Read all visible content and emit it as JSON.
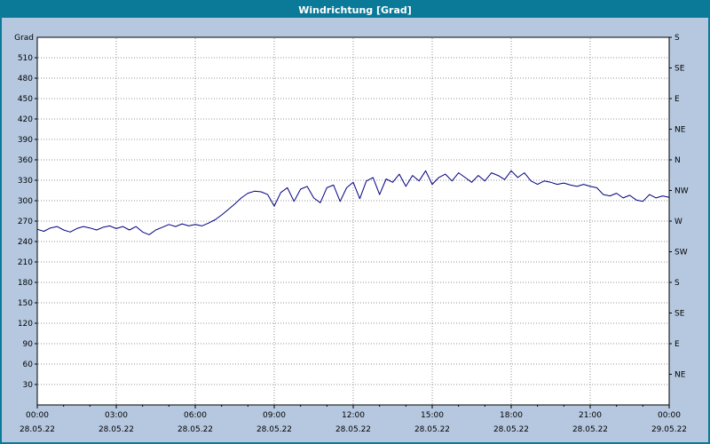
{
  "window": {
    "title": "Windrichtung [Grad]"
  },
  "colors": {
    "titlebar_bg": "#0b7a99",
    "titlebar_text": "#ffffff",
    "frame_bg": "#b6c8e0",
    "frame_border": "#0b7a99",
    "plot_bg": "#ffffff",
    "plot_border": "#000000",
    "grid": "#909090",
    "axis_text": "#000000",
    "line": "#000080"
  },
  "chart_data": {
    "type": "line",
    "title": "Windrichtung [Grad]",
    "y_left": {
      "label": "Grad",
      "min": 0,
      "max": 540,
      "tick_values": [
        510,
        480,
        450,
        420,
        390,
        360,
        330,
        300,
        270,
        240,
        210,
        180,
        150,
        120,
        90,
        60,
        30
      ]
    },
    "y_right": {
      "ticks": [
        {
          "value": 540,
          "label": "S"
        },
        {
          "value": 495,
          "label": "SE"
        },
        {
          "value": 450,
          "label": "E"
        },
        {
          "value": 405,
          "label": "NE"
        },
        {
          "value": 360,
          "label": "N"
        },
        {
          "value": 315,
          "label": "NW"
        },
        {
          "value": 270,
          "label": "W"
        },
        {
          "value": 225,
          "label": "SW"
        },
        {
          "value": 180,
          "label": "S"
        },
        {
          "value": 135,
          "label": "SE"
        },
        {
          "value": 90,
          "label": "E"
        },
        {
          "value": 45,
          "label": "NE"
        }
      ]
    },
    "x_axis": {
      "min_hours": 0,
      "max_hours": 24,
      "ticks": [
        {
          "t": 0,
          "time": "00:00",
          "date": "28.05.22"
        },
        {
          "t": 3,
          "time": "03:00",
          "date": "28.05.22"
        },
        {
          "t": 6,
          "time": "06:00",
          "date": "28.05.22"
        },
        {
          "t": 9,
          "time": "09:00",
          "date": "28.05.22"
        },
        {
          "t": 12,
          "time": "12:00",
          "date": "28.05.22"
        },
        {
          "t": 15,
          "time": "15:00",
          "date": "28.05.22"
        },
        {
          "t": 18,
          "time": "18:00",
          "date": "28.05.22"
        },
        {
          "t": 21,
          "time": "21:00",
          "date": "28.05.22"
        },
        {
          "t": 24,
          "time": "00:00",
          "date": "29.05.22"
        }
      ]
    },
    "series": [
      {
        "name": "Windrichtung",
        "unit": "Grad",
        "color": "#000080",
        "points": [
          [
            0,
            258
          ],
          [
            0.25,
            255
          ],
          [
            0.5,
            260
          ],
          [
            0.75,
            262
          ],
          [
            1,
            257
          ],
          [
            1.25,
            254
          ],
          [
            1.5,
            259
          ],
          [
            1.75,
            262
          ],
          [
            2,
            260
          ],
          [
            2.25,
            257
          ],
          [
            2.5,
            261
          ],
          [
            2.75,
            263
          ],
          [
            3,
            259
          ],
          [
            3.25,
            262
          ],
          [
            3.5,
            257
          ],
          [
            3.75,
            262
          ],
          [
            4,
            254
          ],
          [
            4.25,
            250
          ],
          [
            4.5,
            257
          ],
          [
            4.75,
            261
          ],
          [
            5,
            265
          ],
          [
            5.25,
            262
          ],
          [
            5.5,
            266
          ],
          [
            5.75,
            263
          ],
          [
            6,
            265
          ],
          [
            6.25,
            263
          ],
          [
            6.5,
            267
          ],
          [
            6.75,
            272
          ],
          [
            7,
            279
          ],
          [
            7.25,
            287
          ],
          [
            7.5,
            295
          ],
          [
            7.75,
            304
          ],
          [
            8,
            311
          ],
          [
            8.25,
            314
          ],
          [
            8.5,
            313
          ],
          [
            8.75,
            309
          ],
          [
            9,
            292
          ],
          [
            9.25,
            312
          ],
          [
            9.5,
            319
          ],
          [
            9.75,
            299
          ],
          [
            10,
            317
          ],
          [
            10.25,
            321
          ],
          [
            10.5,
            304
          ],
          [
            10.75,
            297
          ],
          [
            11,
            319
          ],
          [
            11.25,
            323
          ],
          [
            11.5,
            299
          ],
          [
            11.75,
            319
          ],
          [
            12,
            327
          ],
          [
            12.25,
            303
          ],
          [
            12.5,
            329
          ],
          [
            12.75,
            334
          ],
          [
            13,
            309
          ],
          [
            13.25,
            332
          ],
          [
            13.5,
            327
          ],
          [
            13.75,
            339
          ],
          [
            14,
            321
          ],
          [
            14.25,
            337
          ],
          [
            14.5,
            329
          ],
          [
            14.75,
            344
          ],
          [
            15,
            324
          ],
          [
            15.25,
            334
          ],
          [
            15.5,
            339
          ],
          [
            15.75,
            329
          ],
          [
            16,
            341
          ],
          [
            16.25,
            334
          ],
          [
            16.5,
            327
          ],
          [
            16.75,
            337
          ],
          [
            17,
            329
          ],
          [
            17.25,
            341
          ],
          [
            17.5,
            337
          ],
          [
            17.75,
            331
          ],
          [
            18,
            344
          ],
          [
            18.25,
            334
          ],
          [
            18.5,
            341
          ],
          [
            18.75,
            329
          ],
          [
            19,
            324
          ],
          [
            19.25,
            329
          ],
          [
            19.5,
            327
          ],
          [
            19.75,
            324
          ],
          [
            20,
            326
          ],
          [
            20.25,
            323
          ],
          [
            20.5,
            321
          ],
          [
            20.75,
            324
          ],
          [
            21,
            321
          ],
          [
            21.25,
            319
          ],
          [
            21.5,
            309
          ],
          [
            21.75,
            307
          ],
          [
            22,
            311
          ],
          [
            22.25,
            304
          ],
          [
            22.5,
            308
          ],
          [
            22.75,
            301
          ],
          [
            23,
            299
          ],
          [
            23.25,
            309
          ],
          [
            23.5,
            304
          ],
          [
            23.75,
            307
          ],
          [
            24,
            305
          ]
        ]
      }
    ]
  }
}
